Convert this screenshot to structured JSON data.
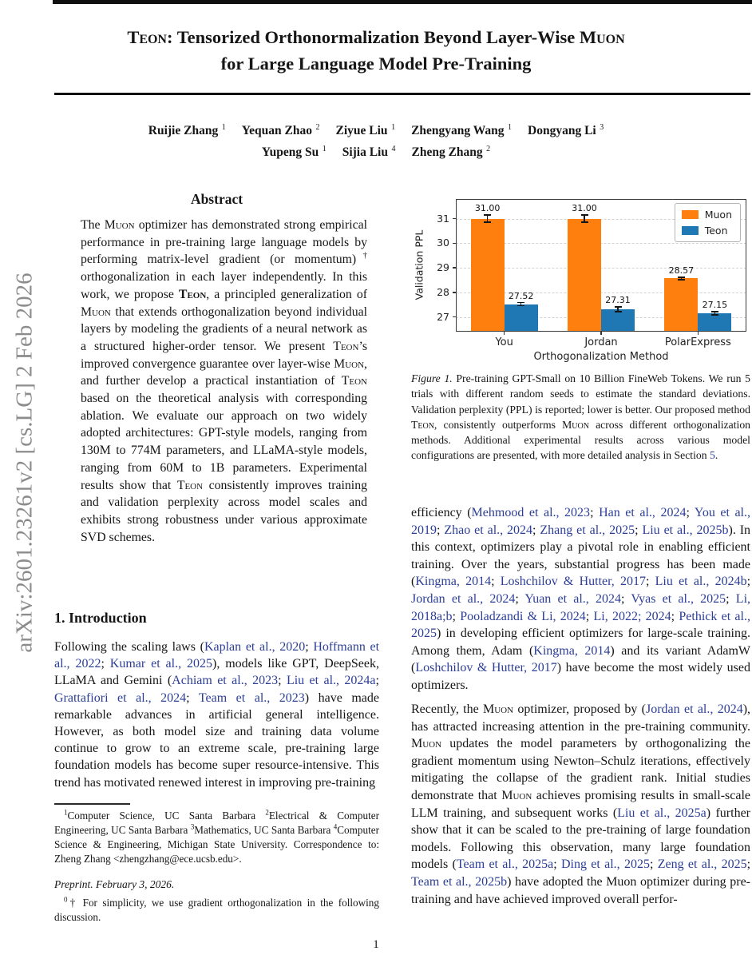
{
  "watermark": {
    "text": "arXiv:2601.23261v2  [cs.LG]  2 Feb 2026"
  },
  "header": {
    "title_line1": [
      {
        "t": "Teon",
        "sc": true
      },
      {
        "t": ": Tensorized Orthonormalization Beyond Layer-Wise "
      },
      {
        "t": "Muon",
        "sc": true
      }
    ],
    "title_line2": "for Large Language Model Pre-Training",
    "authors_line1": [
      {
        "name": "Ruijie Zhang",
        "sup": "1"
      },
      {
        "name": "Yequan Zhao",
        "sup": "2"
      },
      {
        "name": "Ziyue Liu",
        "sup": "1"
      },
      {
        "name": "Zhengyang Wang",
        "sup": "1"
      },
      {
        "name": "Dongyang Li",
        "sup": "3"
      }
    ],
    "authors_line2": [
      {
        "name": "Yupeng Su",
        "sup": "1"
      },
      {
        "name": "Sijia Liu",
        "sup": "4"
      },
      {
        "name": "Zheng Zhang",
        "sup": "2"
      }
    ]
  },
  "abstract": {
    "heading": "Abstract",
    "body": [
      {
        "t": "The "
      },
      {
        "t": "Muon",
        "sc": true
      },
      {
        "t": " optimizer has demonstrated strong empirical performance in pre-training large language models by performing matrix-level gradient (or momentum)"
      },
      {
        "t": "†",
        "sup": true
      },
      {
        "t": " orthogonalization in each layer independently. In this work, we propose "
      },
      {
        "t": "Teon",
        "sc": true,
        "b": true
      },
      {
        "t": ", a principled generalization of "
      },
      {
        "t": "Muon",
        "sc": true
      },
      {
        "t": " that extends orthogonalization beyond individual layers by modeling the gradients of a neural network as a structured higher-order tensor. We present "
      },
      {
        "t": "Teon",
        "sc": true
      },
      {
        "t": "’s improved convergence guarantee over layer-wise "
      },
      {
        "t": "Muon",
        "sc": true
      },
      {
        "t": ", and further develop a practical instantiation of "
      },
      {
        "t": "Teon",
        "sc": true
      },
      {
        "t": " based on the theoretical analysis with corresponding ablation. We evaluate our approach on two widely adopted architectures: GPT-style models, ranging from 130M to 774M parameters, and LLaMA-style models, ranging from 60M to 1B parameters. Experimental results show that "
      },
      {
        "t": "Teon",
        "sc": true
      },
      {
        "t": " consistently improves training and validation perplexity across model scales and exhibits strong robustness under various approximate SVD schemes."
      }
    ]
  },
  "intro": {
    "heading": "1. Introduction",
    "body": [
      {
        "t": "Following the scaling laws ("
      },
      {
        "t": "Kaplan et al., 2020",
        "link": true
      },
      {
        "t": "; "
      },
      {
        "t": "Hoffmann et al., 2022",
        "link": true
      },
      {
        "t": "; "
      },
      {
        "t": "Kumar et al., 2025",
        "link": true
      },
      {
        "t": "), models like GPT, DeepSeek, LLaMA and Gemini ("
      },
      {
        "t": "Achiam et al., 2023",
        "link": true
      },
      {
        "t": "; "
      },
      {
        "t": "Liu et al., 2024a",
        "link": true
      },
      {
        "t": "; "
      },
      {
        "t": "Grattafiori et al., 2024",
        "link": true
      },
      {
        "t": "; "
      },
      {
        "t": "Team et al., 2023",
        "link": true
      },
      {
        "t": ") have made remarkable advances in artificial general intelligence. However, as both model size and training data volume continue to grow to an extreme scale, pre-training large foundation models has become super resource-intensive. This trend has motivated renewed interest in improving pre-training"
      }
    ]
  },
  "footnotes": {
    "affiliation": [
      {
        "t": "1",
        "sup": true
      },
      {
        "t": "Computer Science, UC Santa Barbara "
      },
      {
        "t": "2",
        "sup": true
      },
      {
        "t": "Electrical & Computer Engineering, UC Santa Barbara "
      },
      {
        "t": "3",
        "sup": true
      },
      {
        "t": "Mathematics, UC Santa Barbara "
      },
      {
        "t": "4",
        "sup": true
      },
      {
        "t": "Computer Science & Engineering, Michigan State University. Correspondence to: Zheng Zhang <zhengzhang@ece.ucsb.edu>."
      }
    ],
    "preprint": "Preprint. February 3, 2026.",
    "dagger": [
      {
        "t": "0",
        "sup": true
      },
      {
        "t": "† For simplicity, we use gradient orthogonalization in the following discussion."
      }
    ]
  },
  "figure": {
    "caption": [
      {
        "t": "Figure 1.",
        "i": true
      },
      {
        "t": " Pre-training GPT-Small on 10 Billion FineWeb Tokens. We run 5 trials with different random seeds to estimate the standard deviations. Validation perplexity (PPL) is reported; lower is better. Our proposed method "
      },
      {
        "t": "Teon",
        "sc": true
      },
      {
        "t": ", consistently outperforms "
      },
      {
        "t": "Muon",
        "sc": true
      },
      {
        "t": " across different orthogonalization methods. Additional experimental results across various model configurations are presented, with more detailed analysis in Section "
      },
      {
        "t": "5",
        "link": true
      },
      {
        "t": "."
      }
    ]
  },
  "chart_data": {
    "type": "bar",
    "categories": [
      "You",
      "Jordan",
      "PolarExpress"
    ],
    "series": [
      {
        "name": "Muon",
        "color": "#ff7f0e",
        "values": [
          31.0,
          31.0,
          28.57
        ],
        "errors": [
          0.15,
          0.15,
          0.05
        ]
      },
      {
        "name": "Teon",
        "color": "#1f77b4",
        "values": [
          27.52,
          27.31,
          27.15
        ],
        "errors": [
          0.06,
          0.1,
          0.07
        ]
      }
    ],
    "xlabel": "Orthogonalization Method",
    "ylabel": "Validation PPL",
    "yticks": [
      27,
      28,
      29,
      30,
      31
    ],
    "ylim": [
      26.4,
      31.8
    ],
    "legend_position": "upper right",
    "grid": "horizontal-dashed"
  },
  "right_col": {
    "para1": [
      {
        "t": "efficiency ("
      },
      {
        "t": "Mehmood et al., 2023",
        "link": true
      },
      {
        "t": "; "
      },
      {
        "t": "Han et al., 2024",
        "link": true
      },
      {
        "t": "; "
      },
      {
        "t": "You et al., 2019",
        "link": true
      },
      {
        "t": "; "
      },
      {
        "t": "Zhao et al., 2024",
        "link": true
      },
      {
        "t": "; "
      },
      {
        "t": "Zhang et al., 2025",
        "link": true
      },
      {
        "t": "; "
      },
      {
        "t": "Liu et al., 2025b",
        "link": true
      },
      {
        "t": "). In this context, optimizers play a pivotal role in enabling efficient training. Over the years, substantial progress has been made ("
      },
      {
        "t": "Kingma, 2014",
        "link": true
      },
      {
        "t": "; "
      },
      {
        "t": "Loshchilov & Hutter, 2017",
        "link": true
      },
      {
        "t": "; "
      },
      {
        "t": "Liu et al., 2024b",
        "link": true
      },
      {
        "t": "; "
      },
      {
        "t": "Jordan et al., 2024",
        "link": true
      },
      {
        "t": "; "
      },
      {
        "t": "Yuan et al., 2024",
        "link": true
      },
      {
        "t": "; "
      },
      {
        "t": "Vyas et al., 2025",
        "link": true
      },
      {
        "t": "; "
      },
      {
        "t": "Li, 2018a;b",
        "link": true
      },
      {
        "t": "; "
      },
      {
        "t": "Pooladzandi & Li, 2024",
        "link": true
      },
      {
        "t": "; "
      },
      {
        "t": "Li, 2022; 2024",
        "link": true
      },
      {
        "t": "; "
      },
      {
        "t": "Pethick et al., 2025",
        "link": true
      },
      {
        "t": ") in developing efficient optimizers for large-scale training. Among them, Adam ("
      },
      {
        "t": "Kingma, 2014",
        "link": true
      },
      {
        "t": ") and its variant AdamW ("
      },
      {
        "t": "Loshchilov & Hutter, 2017",
        "link": true
      },
      {
        "t": ") have become the most widely used optimizers."
      }
    ],
    "para2": [
      {
        "t": "Recently, the "
      },
      {
        "t": "Muon",
        "sc": true
      },
      {
        "t": " optimizer, proposed by ("
      },
      {
        "t": "Jordan et al., 2024",
        "link": true
      },
      {
        "t": "), has attracted increasing attention in the pre-training community. "
      },
      {
        "t": "Muon",
        "sc": true
      },
      {
        "t": " updates the model parameters by orthogonalizing the gradient momentum using Newton–Schulz iterations, effectively mitigating the collapse of the gradient rank. Initial studies demonstrate that "
      },
      {
        "t": "Muon",
        "sc": true
      },
      {
        "t": " achieves promising results in small-scale LLM training, and subsequent works ("
      },
      {
        "t": "Liu et al., 2025a",
        "link": true
      },
      {
        "t": ") further show that it can be scaled to the pre-training of large foundation models. Following this observation, many large foundation models ("
      },
      {
        "t": "Team et al., 2025a",
        "link": true
      },
      {
        "t": "; "
      },
      {
        "t": "Ding et al., 2025",
        "link": true
      },
      {
        "t": "; "
      },
      {
        "t": "Zeng et al., 2025",
        "link": true
      },
      {
        "t": "; "
      },
      {
        "t": "Team et al., 2025b",
        "link": true
      },
      {
        "t": ") have adopted the Muon optimizer during pre-training and have achieved improved overall perfor-"
      }
    ]
  },
  "page": {
    "number": "1"
  }
}
